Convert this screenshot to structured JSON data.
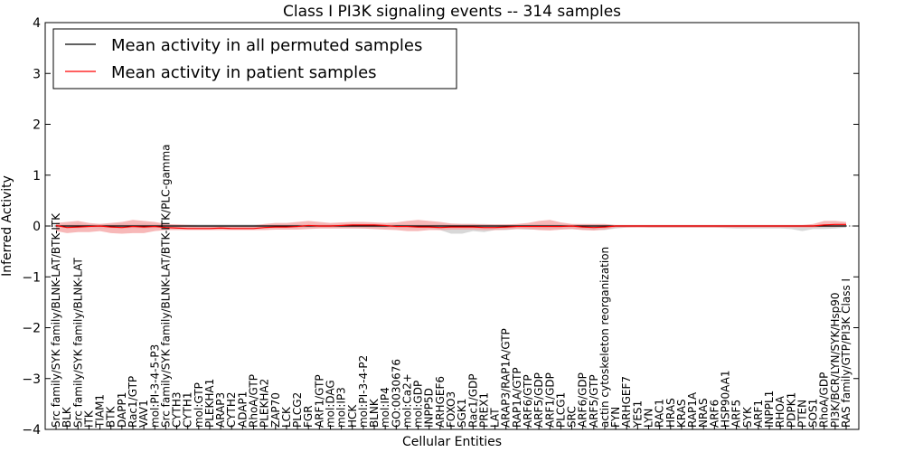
{
  "chart_data": {
    "type": "line",
    "title": "Class I PI3K signaling events -- 314 samples",
    "xlabel": "Cellular Entities",
    "ylabel": "Inferred Activity",
    "ylim": [
      -4,
      4
    ],
    "yticks": [
      "−4",
      "−3",
      "−2",
      "−1",
      "0",
      "1",
      "2",
      "3",
      "4"
    ],
    "grid": false,
    "legend_position": "top-left",
    "legend": [
      {
        "label": "Mean activity in all permuted samples",
        "color": "#000000"
      },
      {
        "label": "Mean activity in patient samples",
        "color": "#ff0000"
      }
    ],
    "colors": {
      "permuted": "#000000",
      "patient": "#ff0000",
      "patient_band": "#f4a0a0",
      "permuted_band": "#c8c8c8"
    },
    "categories": [
      "Src family/SYK family/BLNK-LAT/BTK-ITK",
      "BLK",
      "Src family/SYK family/BLNK-LAT",
      "ITK",
      "TIAM1",
      "BTK",
      "DAPP1",
      "Rac1/GTP",
      "VAV1",
      "mol:PI-3-4-5-P3",
      "Src family/SYK family/BLNK-LAT/BTK-ITK/PLC-gamma",
      "CYTH3",
      "CYTH1",
      "mol:GTP",
      "PLEKHA1",
      "ARAP3",
      "CYTH2",
      "ADAP1",
      "RhoA/GTP",
      "PLEKHA2",
      "ZAP70",
      "LCK",
      "PLCG2",
      "FGR",
      "ARF1/GTP",
      "mol:DAG",
      "mol:IP3",
      "HCK",
      "mol:PI-3-4-P2",
      "BLNK",
      "mol:IP4",
      "GO:0030676",
      "mol:Ca2+",
      "mol:GDP",
      "INPP5D",
      "ARHGEF6",
      "FOXO3",
      "SGK1",
      "Rac1/GDP",
      "PREX1",
      "LAT",
      "ARAP3/RAP1A/GTP",
      "RAP1A/GTP",
      "ARF6/GTP",
      "ARF5/GDP",
      "ARF1/GDP",
      "PLCG1",
      "SRC",
      "ARF6/GDP",
      "ARF5/GTP",
      "actin cytoskeleton reorganization",
      "FYN",
      "ARHGEF7",
      "YES1",
      "LYN",
      "RAC1",
      "HRAS",
      "KRAS",
      "RAP1A",
      "NRAS",
      "ARF6",
      "HSP90AA1",
      "ARF5",
      "SYK",
      "ARF1",
      "INPPL1",
      "RHOA",
      "PDPK1",
      "PTEN",
      "SOS1",
      "RhoA/GDP",
      "PI3K/BCR/LYN/SYK/Hsp90",
      "RAS family/GTP/PI3K Class I"
    ],
    "series": [
      {
        "name": "Mean activity in all permuted samples",
        "values": [
          0,
          0,
          0,
          0,
          0,
          0,
          0,
          0,
          0,
          0,
          0,
          0,
          0,
          0,
          0,
          0,
          0,
          0,
          0,
          0,
          0,
          0,
          0,
          0,
          0,
          0,
          0,
          0,
          0,
          0,
          0,
          0,
          0,
          0,
          0,
          0,
          0,
          0,
          0,
          0,
          0,
          0,
          0,
          0,
          0,
          0,
          0,
          0,
          0,
          0,
          0,
          0,
          0,
          0,
          0,
          0,
          0,
          0,
          0,
          0,
          0,
          0,
          0,
          0,
          0,
          0,
          0,
          0,
          0,
          0,
          0,
          0,
          0
        ],
        "lower": [
          -0.02,
          -0.04,
          -0.05,
          -0.03,
          -0.05,
          -0.04,
          -0.05,
          -0.04,
          -0.05,
          -0.04,
          -0.03,
          -0.03,
          -0.03,
          -0.06,
          -0.06,
          -0.06,
          -0.06,
          -0.06,
          -0.05,
          -0.04,
          -0.03,
          -0.03,
          -0.04,
          -0.04,
          -0.04,
          -0.04,
          -0.04,
          -0.04,
          -0.05,
          -0.04,
          -0.04,
          -0.04,
          -0.04,
          -0.04,
          -0.05,
          -0.08,
          -0.15,
          -0.15,
          -0.1,
          -0.12,
          -0.08,
          -0.08,
          -0.06,
          -0.07,
          -0.07,
          -0.06,
          -0.06,
          -0.06,
          -0.07,
          -0.08,
          -0.08,
          -0.05,
          -0.03,
          -0.02,
          -0.03,
          -0.03,
          -0.03,
          -0.03,
          -0.03,
          -0.03,
          -0.03,
          -0.04,
          -0.05,
          -0.05,
          -0.05,
          -0.05,
          -0.05,
          -0.06,
          -0.1,
          -0.06,
          -0.06,
          -0.05,
          -0.03
        ],
        "upper": [
          0.02,
          0.03,
          0.05,
          0.03,
          0.04,
          0.04,
          0.05,
          0.04,
          0.05,
          0.04,
          0.03,
          0.03,
          0.03,
          0.03,
          0.03,
          0.03,
          0.03,
          0.03,
          0.03,
          0.03,
          0.03,
          0.03,
          0.03,
          0.03,
          0.03,
          0.03,
          0.03,
          0.03,
          0.03,
          0.03,
          0.03,
          0.03,
          0.03,
          0.03,
          0.03,
          0.04,
          0.04,
          0.04,
          0.04,
          0.04,
          0.03,
          0.03,
          0.03,
          0.03,
          0.04,
          0.04,
          0.03,
          0.03,
          0.03,
          0.03,
          0.03,
          0.02,
          0.02,
          0.02,
          0.02,
          0.02,
          0.02,
          0.02,
          0.02,
          0.02,
          0.02,
          0.02,
          0.02,
          0.02,
          0.02,
          0.02,
          0.02,
          0.02,
          0.02,
          0.02,
          0.03,
          0.03,
          0.02
        ]
      },
      {
        "name": "Mean activity in patient samples",
        "values": [
          0.01,
          -0.03,
          -0.02,
          -0.01,
          0.0,
          -0.02,
          -0.03,
          -0.01,
          -0.02,
          -0.01,
          -0.03,
          -0.04,
          -0.05,
          -0.05,
          -0.05,
          -0.04,
          -0.05,
          -0.05,
          -0.05,
          -0.03,
          -0.02,
          -0.02,
          -0.01,
          0.01,
          0.0,
          0.0,
          0.01,
          0.02,
          0.02,
          0.02,
          0.01,
          -0.01,
          -0.01,
          -0.02,
          -0.02,
          -0.03,
          -0.02,
          -0.02,
          -0.02,
          -0.03,
          -0.03,
          -0.02,
          -0.01,
          -0.01,
          -0.01,
          -0.01,
          -0.01,
          0.0,
          -0.02,
          -0.03,
          -0.02,
          0.0,
          0.0,
          0.0,
          0.0,
          0.0,
          0.0,
          0.0,
          0.0,
          0.0,
          0.0,
          0.0,
          0.0,
          0.0,
          0.0,
          0.0,
          0.0,
          0.0,
          0.0,
          0.0,
          0.02,
          0.03,
          0.03
        ],
        "lower": [
          -0.1,
          -0.14,
          -0.12,
          -0.12,
          -0.1,
          -0.14,
          -0.15,
          -0.14,
          -0.14,
          -0.1,
          -0.08,
          -0.08,
          -0.08,
          -0.08,
          -0.08,
          -0.08,
          -0.08,
          -0.08,
          -0.08,
          -0.08,
          -0.07,
          -0.07,
          -0.07,
          -0.06,
          -0.05,
          -0.05,
          -0.05,
          -0.05,
          -0.05,
          -0.06,
          -0.07,
          -0.08,
          -0.1,
          -0.1,
          -0.08,
          -0.08,
          -0.07,
          -0.07,
          -0.07,
          -0.08,
          -0.08,
          -0.07,
          -0.06,
          -0.06,
          -0.08,
          -0.09,
          -0.07,
          -0.06,
          -0.08,
          -0.09,
          -0.07,
          -0.03,
          -0.03,
          -0.03,
          -0.03,
          -0.03,
          -0.03,
          -0.03,
          -0.03,
          -0.03,
          -0.03,
          -0.03,
          -0.03,
          -0.03,
          -0.03,
          -0.03,
          -0.03,
          -0.03,
          -0.03,
          -0.03,
          -0.02,
          -0.02,
          -0.01
        ],
        "upper": [
          0.06,
          0.08,
          0.1,
          0.06,
          0.04,
          0.06,
          0.08,
          0.12,
          0.1,
          0.08,
          0.04,
          0.03,
          0.02,
          0.01,
          0.01,
          0.01,
          0.01,
          0.01,
          0.01,
          0.04,
          0.06,
          0.06,
          0.08,
          0.1,
          0.08,
          0.06,
          0.07,
          0.08,
          0.08,
          0.07,
          0.06,
          0.07,
          0.1,
          0.12,
          0.1,
          0.08,
          0.05,
          0.04,
          0.04,
          0.03,
          0.03,
          0.03,
          0.04,
          0.06,
          0.1,
          0.12,
          0.07,
          0.04,
          0.04,
          0.04,
          0.04,
          0.02,
          0.02,
          0.02,
          0.02,
          0.02,
          0.02,
          0.02,
          0.02,
          0.02,
          0.02,
          0.02,
          0.02,
          0.02,
          0.02,
          0.02,
          0.02,
          0.02,
          0.02,
          0.04,
          0.1,
          0.1,
          0.08
        ]
      }
    ]
  }
}
